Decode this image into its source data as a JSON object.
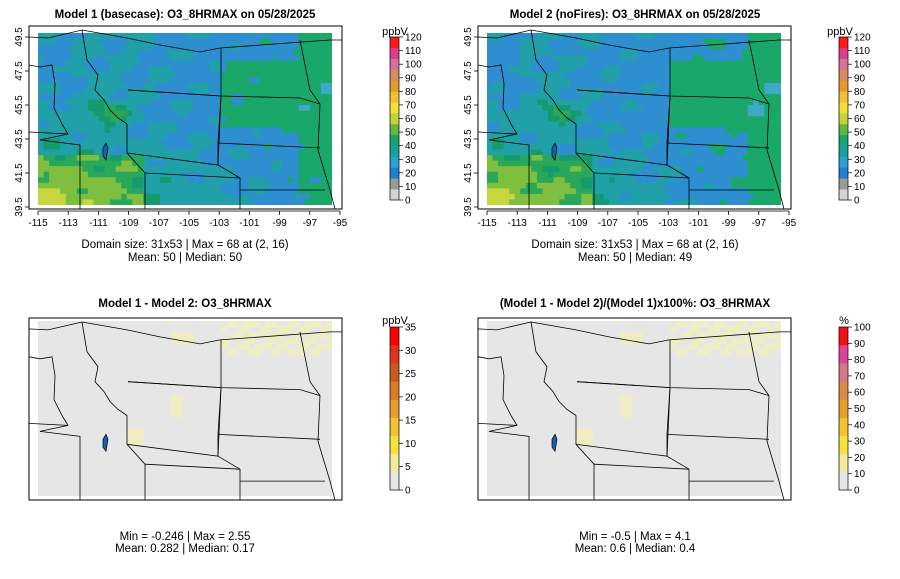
{
  "colors": {
    "scale": [
      "#c8c8c8",
      "#9e9e9e",
      "#1e7fd6",
      "#3ea9c6",
      "#1aa86a",
      "#56b63a",
      "#b7d33a",
      "#f0e03a",
      "#f2c230",
      "#e89e2a",
      "#d98b4c",
      "#d07a8a",
      "#e0419a",
      "#ee1111"
    ],
    "diff_scale": [
      "#e6e6e6",
      "#f1ea9a",
      "#f6e23a",
      "#f2c230",
      "#ea9c2a",
      "#d97c22",
      "#c85a1a",
      "#e1341a",
      "#ff0000"
    ],
    "pct_scale": [
      "#e6e6e6",
      "#f1ea9a",
      "#f6e23a",
      "#f2c230",
      "#e89e2a",
      "#d98b4c",
      "#d07a8a",
      "#e0419a",
      "#ee1111"
    ],
    "map_gray": "#e6e6e6"
  },
  "chart_data": [
    {
      "type": "heatmap",
      "title": "Model 1 (basecase): O3_8HRMAX on 05/28/2025",
      "x_ticks": [
        "-115",
        "-113",
        "-111",
        "-109",
        "-107",
        "-105",
        "-103",
        "-101",
        "-99",
        "-97",
        "-95"
      ],
      "y_ticks": [
        "39.5",
        "41.5",
        "43.5",
        "45.5",
        "47.5",
        "49.5"
      ],
      "xlim": [
        -115,
        -95
      ],
      "ylim": [
        39.5,
        49.5
      ],
      "colorbar": {
        "unit": "ppbV",
        "ticks": [
          "0",
          "10",
          "20",
          "30",
          "40",
          "50",
          "60",
          "70",
          "80",
          "90",
          "100",
          "110",
          "120"
        ],
        "range": [
          0,
          120
        ]
      },
      "stats_line1": "Domain size: 31x53 | Max = 68 at (2, 16)",
      "stats_line2": "Mean: 50 |  Median: 50",
      "mean": 50
    },
    {
      "type": "heatmap",
      "title": "Model 2 (noFires): O3_8HRMAX on 05/28/2025",
      "x_ticks": [
        "-115",
        "-113",
        "-111",
        "-109",
        "-107",
        "-105",
        "-103",
        "-101",
        "-99",
        "-97",
        "-95"
      ],
      "y_ticks": [
        "39.5",
        "41.5",
        "43.5",
        "45.5",
        "47.5",
        "49.5"
      ],
      "xlim": [
        -115,
        -95
      ],
      "ylim": [
        39.5,
        49.5
      ],
      "colorbar": {
        "unit": "ppbV",
        "ticks": [
          "0",
          "10",
          "20",
          "30",
          "40",
          "50",
          "60",
          "70",
          "80",
          "90",
          "100",
          "110",
          "120"
        ],
        "range": [
          0,
          120
        ]
      },
      "stats_line1": "Domain size: 31x53 | Max = 68 at (2, 16)",
      "stats_line2": "Mean: 50 |  Median: 49",
      "mean": 50
    },
    {
      "type": "heatmap",
      "title": "Model 1 - Model 2: O3_8HRMAX",
      "colorbar": {
        "unit": "ppbV",
        "ticks": [
          "0",
          "5",
          "10",
          "15",
          "20",
          "25",
          "30",
          "35"
        ],
        "range": [
          0,
          35
        ]
      },
      "stats_line1": "Min = -0.246 | Max = 2.55",
      "stats_line2": "Mean: 0.282 |  Median: 0.17",
      "mean": 0.282
    },
    {
      "type": "heatmap",
      "title": "(Model 1 - Model 2)/(Model 1)x100%: O3_8HRMAX",
      "colorbar": {
        "unit": "%",
        "ticks": [
          "0",
          "10",
          "20",
          "30",
          "40",
          "50",
          "60",
          "70",
          "80",
          "90",
          "100"
        ],
        "range": [
          0,
          100
        ]
      },
      "stats_line1": "Min = -0.5 | Max = 4.1",
      "stats_line2": "Mean: 0.6 |  Median: 0.4",
      "mean": 0.6
    }
  ]
}
